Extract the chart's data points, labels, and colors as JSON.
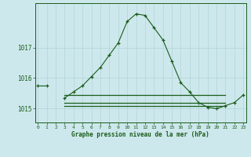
{
  "hours": [
    0,
    1,
    2,
    3,
    4,
    5,
    6,
    7,
    8,
    9,
    10,
    11,
    12,
    13,
    14,
    15,
    16,
    17,
    18,
    19,
    20,
    21,
    22,
    23
  ],
  "main_line": [
    1015.75,
    1015.75,
    null,
    1015.35,
    1015.55,
    1015.75,
    1016.05,
    1016.35,
    1016.75,
    1017.15,
    1017.85,
    1018.1,
    1018.05,
    1017.65,
    1017.25,
    1016.55,
    1015.85,
    1015.55,
    1015.2,
    1015.05,
    1015.0,
    1015.1,
    1015.2,
    1015.45
  ],
  "flat_line1": [
    null,
    null,
    null,
    1015.45,
    1015.45,
    1015.45,
    1015.45,
    1015.45,
    1015.45,
    1015.45,
    1015.45,
    1015.45,
    1015.45,
    1015.45,
    1015.45,
    1015.45,
    1015.45,
    1015.45,
    1015.45,
    1015.45,
    1015.45,
    1015.45,
    null,
    null
  ],
  "flat_line2": [
    null,
    null,
    null,
    1015.2,
    1015.2,
    1015.2,
    1015.2,
    1015.2,
    1015.2,
    1015.2,
    1015.2,
    1015.2,
    1015.2,
    1015.2,
    1015.2,
    1015.2,
    1015.2,
    1015.2,
    1015.2,
    1015.2,
    1015.2,
    1015.2,
    null,
    null
  ],
  "flat_line3": [
    null,
    null,
    null,
    1015.1,
    1015.1,
    1015.1,
    1015.1,
    1015.1,
    1015.1,
    1015.1,
    1015.1,
    1015.1,
    1015.1,
    1015.1,
    1015.1,
    1015.1,
    1015.1,
    1015.1,
    1015.1,
    1015.1,
    1015.1,
    1015.1,
    null,
    null
  ],
  "line_color": "#1a5c1a",
  "bg_color": "#cde8ec",
  "grid_color": "#b0d4d8",
  "text_color": "#1a5c1a",
  "xlabel": "Graphe pression niveau de la mer (hPa)",
  "ylim": [
    1014.55,
    1018.45
  ],
  "yticks": [
    1015,
    1016,
    1017
  ],
  "figsize": [
    3.2,
    2.0
  ],
  "dpi": 100
}
